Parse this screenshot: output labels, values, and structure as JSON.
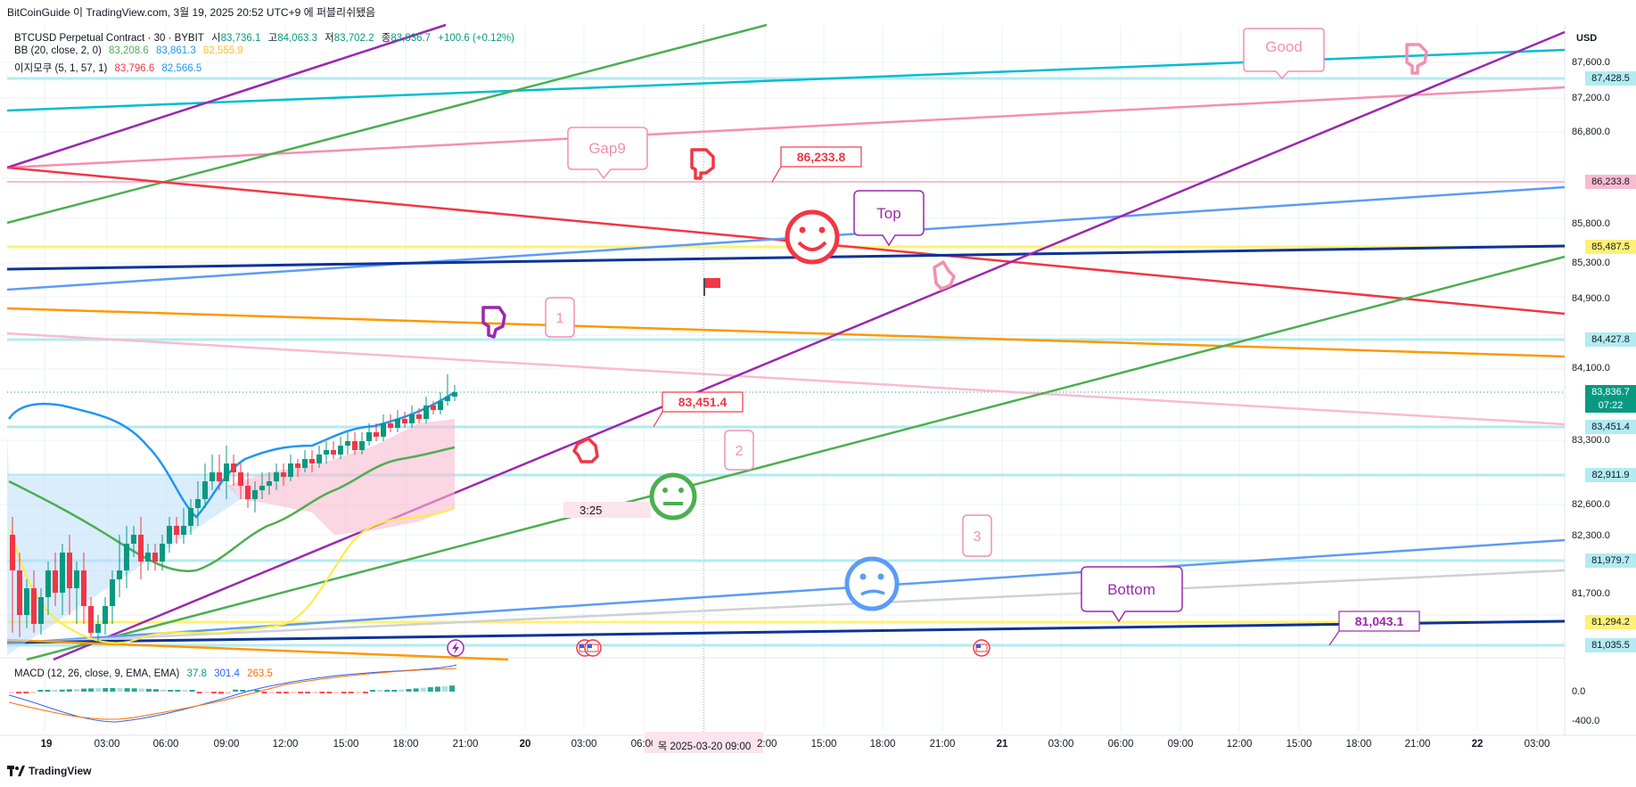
{
  "header": {
    "publisher_line": "BitCoinGuide 이 TradingView.com, 3월 19, 2025 20:52 UTC+9 에 퍼블리쉬됐음"
  },
  "legend": {
    "main": {
      "title": "BTCUSD Perpetual Contract · 30 · BYBIT",
      "o_label": "시",
      "o": "83,736.1",
      "h_label": "고",
      "h": "84,063.3",
      "l_label": "저",
      "l": "83,702.2",
      "c_label": "종",
      "c": "83,836.7",
      "change": "+100.6 (+0.12%)"
    },
    "bb": {
      "label": "BB (20, close, 2, 0)",
      "v1": "83,208.6",
      "v2": "83,861.3",
      "v3": "82,555.9"
    },
    "ichimoku": {
      "label": "이지모쿠 (5, 1, 57, 1)",
      "v1": "83,796.6",
      "v2": "82,566.5"
    },
    "macd": {
      "label": "MACD (12, 26, close, 9, EMA, EMA)",
      "v1": "37.8",
      "v2": "301.4",
      "v3": "263.5"
    }
  },
  "price_axis": {
    "currency": "USD",
    "ticks": [
      "87,600.0",
      "87,200.0",
      "86,800.0",
      "85,800.0",
      "85,300.0",
      "84,900.0",
      "84,100.0",
      "83,300.0",
      "82,600.0",
      "82,300.0",
      "81,700.0"
    ],
    "tags": {
      "t87428": "87,428.5",
      "t86233": "86,233.8",
      "t85487": "85,487.5",
      "t84427": "84,427.8",
      "current": "83,836.7",
      "countdown": "07:22",
      "t83451": "83,451.4",
      "t82911": "82,911.9",
      "t81979": "81,979.7",
      "t81294": "81,294.2",
      "t81035": "81,035.5"
    },
    "macd_ticks": [
      "0.0",
      "-400.0"
    ]
  },
  "time_axis": {
    "ticks": [
      "19",
      "03:00",
      "06:00",
      "09:00",
      "12:00",
      "15:00",
      "18:00",
      "21:00",
      "20",
      "03:00",
      "06:00",
      "12:00",
      "15:00",
      "18:00",
      "21:00",
      "21",
      "03:00",
      "06:00",
      "09:00",
      "12:00",
      "15:00",
      "18:00",
      "21:00",
      "22",
      "03:00"
    ],
    "highlight": "목 2025-03-20   09:00"
  },
  "annotations": {
    "good": "Good",
    "gap": "Gap9",
    "top": "Top",
    "bottom": "Bottom",
    "n1": "1",
    "n2": "2",
    "n3": "3",
    "price_86233": "86,233.8",
    "price_83451": "83,451.4",
    "price_81043": "81,043.1",
    "timer": "3:25"
  },
  "footer": {
    "brand": "TradingView"
  },
  "colors": {
    "up": "#089981",
    "down": "#f23645",
    "purple": "#9c27b0",
    "green": "#4caf50",
    "cyan": "#00bcd4",
    "blue": "#5b9cf6",
    "navy": "#0c3299",
    "orange": "#ff9800",
    "yellow": "#ffeb3b",
    "pink": "#f48fb1"
  }
}
